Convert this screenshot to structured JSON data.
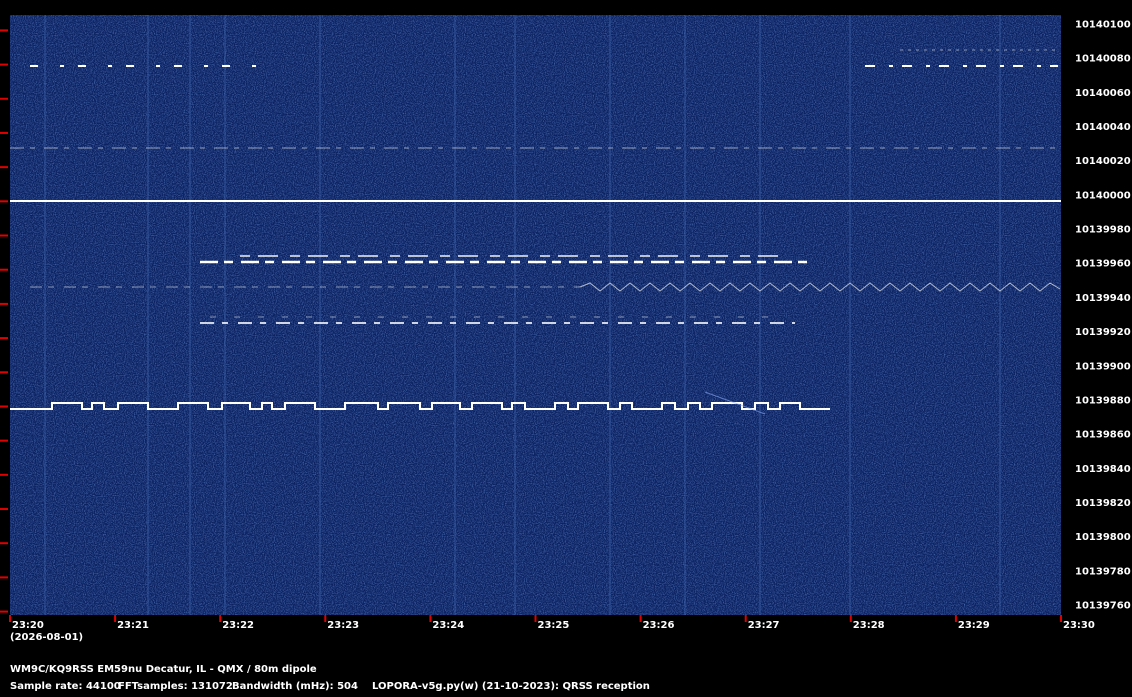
{
  "chart_data": {
    "type": "spectrogram",
    "categories": [
      "23:20",
      "23:21",
      "23:22",
      "23:23",
      "23:24",
      "23:25",
      "23:26",
      "23:27",
      "23:28",
      "23:29",
      "23:30"
    ],
    "date": "(2026-08-01)",
    "ylim": [
      10139758,
      10140109
    ],
    "yticks": [
      10139760,
      10139780,
      10139800,
      10139820,
      10139840,
      10139860,
      10139880,
      10139900,
      10139920,
      10139940,
      10139960,
      10139980,
      10140000,
      10140020,
      10140040,
      10140060,
      10140080,
      10140100
    ],
    "tick_color": "#e00000"
  },
  "footer": {
    "station": "WM9C/KQ9RSS EM59nu Decatur, IL - QMX / 80m dipole",
    "sample_rate": "Sample rate: 44100",
    "fft_samples": "FFTsamples: 131072",
    "bandwidth": "Bandwidth (mHz): 504",
    "software": "LOPORA-v5g.py(w) (21-10-2023): QRSS reception"
  }
}
